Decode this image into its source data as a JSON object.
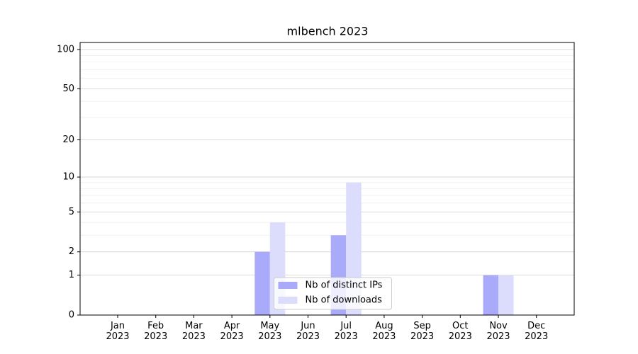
{
  "chart_data": {
    "type": "bar",
    "title": "mlbench 2023",
    "categories": [
      "Jan 2023",
      "Feb 2023",
      "Mar 2023",
      "Apr 2023",
      "May 2023",
      "Jun 2023",
      "Jul 2023",
      "Aug 2023",
      "Sep 2023",
      "Oct 2023",
      "Nov 2023",
      "Dec 2023"
    ],
    "series": [
      {
        "name": "Nb of distinct IPs",
        "color": "#aaaafa",
        "values": [
          0,
          0,
          0,
          0,
          2,
          0,
          3,
          0,
          0,
          0,
          1,
          0
        ]
      },
      {
        "name": "Nb of downloads",
        "color": "#dcdcfc",
        "values": [
          0,
          0,
          0,
          0,
          4,
          0,
          9,
          0,
          0,
          0,
          1,
          0
        ]
      }
    ],
    "yscale": "log1p",
    "ylim": [
      0,
      113
    ],
    "yticks": [
      0,
      1,
      2,
      5,
      10,
      20,
      50,
      100
    ],
    "minor_yticks": [
      3,
      4,
      6,
      7,
      8,
      9,
      30,
      40,
      60,
      70,
      80,
      90
    ],
    "grid": true,
    "legend": "lower center"
  }
}
